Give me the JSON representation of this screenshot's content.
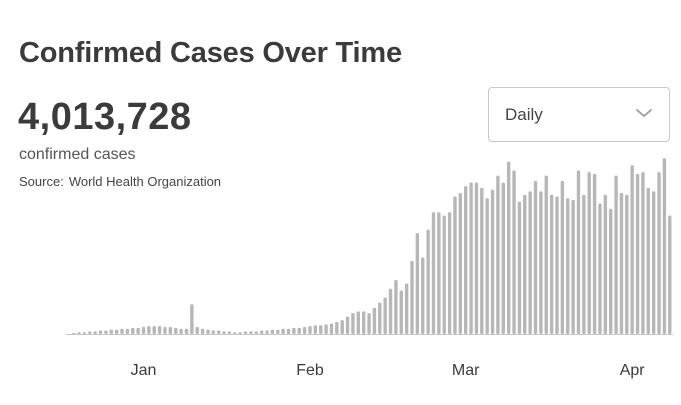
{
  "header": {
    "title": "Confirmed Cases Over Time",
    "total": "4,013,728",
    "total_label": "confirmed cases",
    "source_label": "Source:",
    "source_value": "World Health Organization"
  },
  "controls": {
    "period_select": "Daily",
    "chevron_icon": "chevron-down-icon"
  },
  "colors": {
    "bar": "#b7b7b7",
    "baseline": "#c8c8c8",
    "text": "#3b3b3b"
  },
  "chart_data": {
    "type": "bar",
    "title": "Confirmed Cases Over Time",
    "xlabel": "",
    "ylabel": "",
    "grid": false,
    "x_ticks": [
      {
        "label": "Jan",
        "index": 13
      },
      {
        "label": "Feb",
        "index": 44
      },
      {
        "label": "Mar",
        "index": 73
      },
      {
        "label": "Apr",
        "index": 104
      }
    ],
    "ylim": [
      0,
      100
    ],
    "values": [
      0.5,
      1,
      1,
      1.5,
      1.5,
      2,
      2,
      2.5,
      2.5,
      3,
      3,
      3.5,
      3.5,
      4,
      4.5,
      4.5,
      4.5,
      4,
      4,
      3.5,
      3,
      3,
      17,
      4,
      3,
      2.5,
      2,
      2,
      1.5,
      1.5,
      1,
      1,
      1.5,
      1.5,
      1.5,
      2,
      2,
      2.5,
      2.5,
      3,
      3,
      3.5,
      3.5,
      4,
      4.5,
      5,
      5,
      5.5,
      6,
      7,
      8,
      10,
      12,
      13,
      13,
      12,
      15,
      18,
      21,
      26,
      31,
      25,
      29,
      42,
      58,
      44,
      60,
      70,
      70,
      68,
      70,
      79,
      81,
      85,
      87,
      87,
      84,
      78,
      83,
      91,
      87,
      99,
      94,
      76,
      80,
      82,
      88,
      82,
      91,
      80,
      79,
      88,
      78,
      77,
      94,
      80,
      93,
      92,
      75,
      80,
      72,
      91,
      81,
      80,
      97,
      92,
      93,
      84,
      82,
      93,
      101,
      68
    ]
  }
}
